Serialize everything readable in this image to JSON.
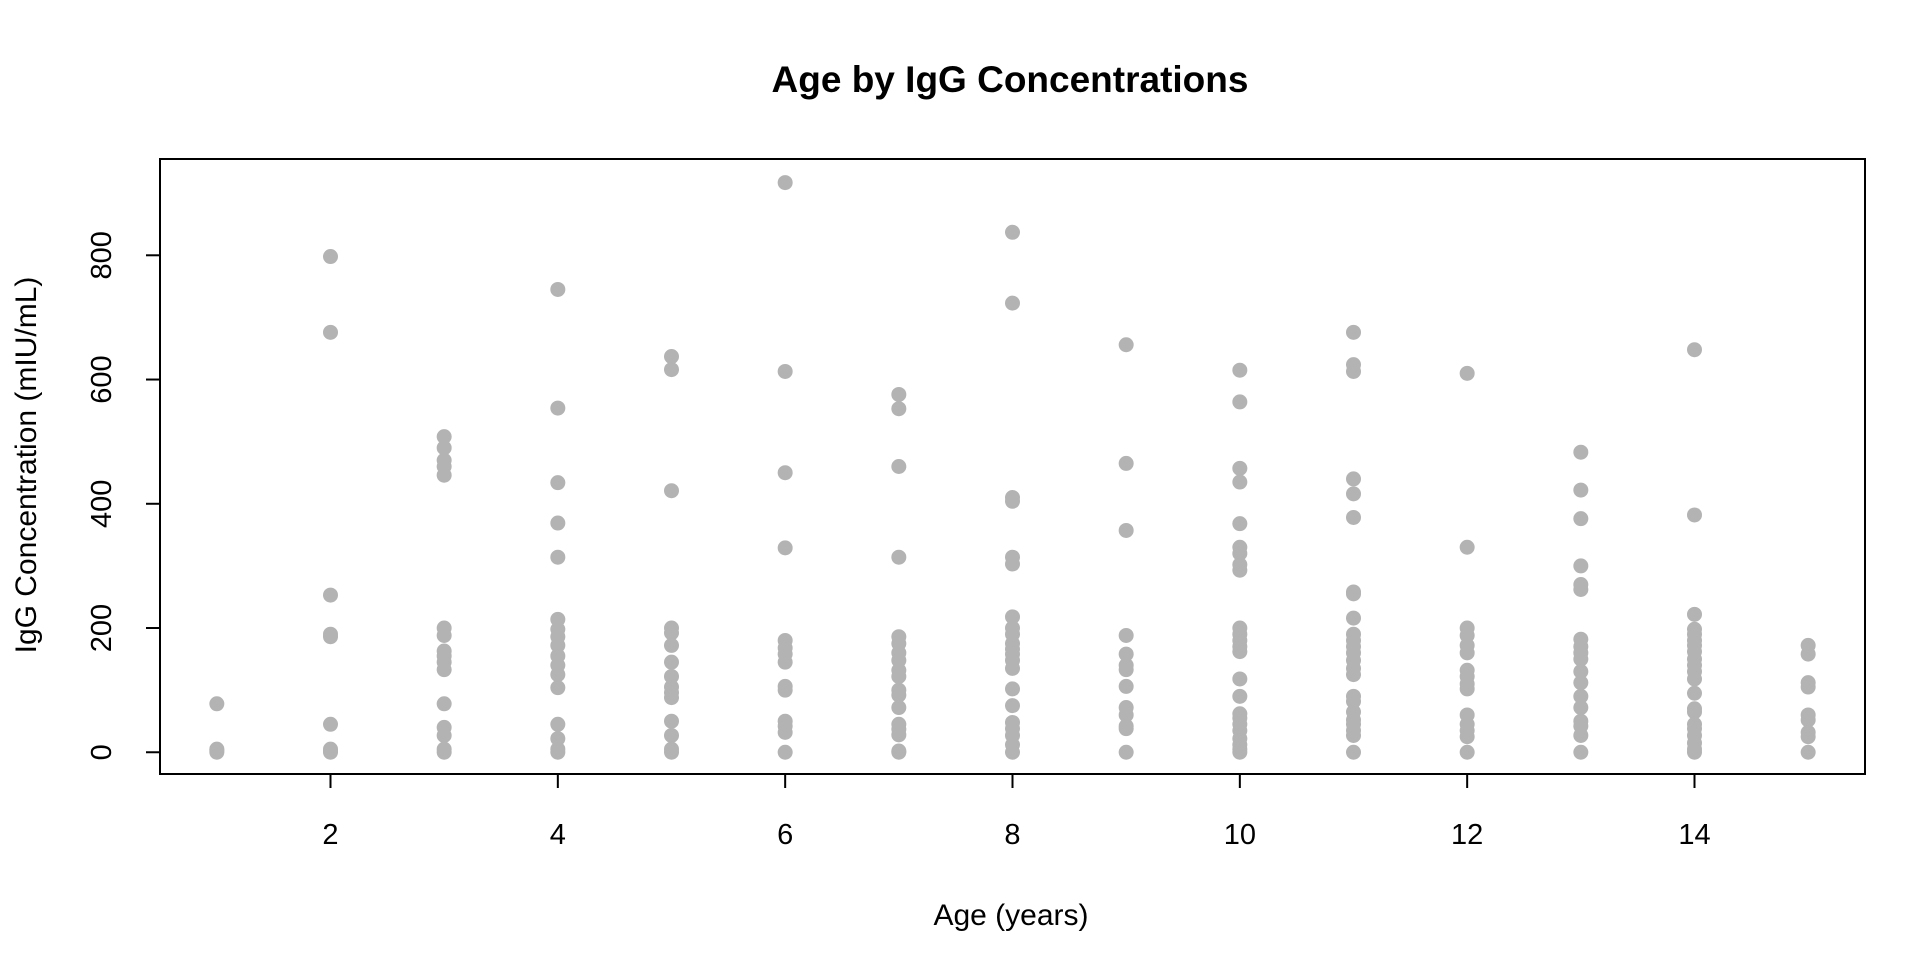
{
  "chart_data": {
    "type": "scatter",
    "title": "Age by IgG Concentrations",
    "xlabel": "Age (years)",
    "ylabel": "IgG Concentration (mIU/mL)",
    "xlim": [
      0.5,
      15.5
    ],
    "ylim": [
      -35,
      955
    ],
    "xticks": [
      2,
      4,
      6,
      8,
      10,
      12,
      14
    ],
    "xtick_labels": [
      "2",
      "4",
      "6",
      "8",
      "10",
      "12",
      "14"
    ],
    "yticks": [
      0,
      200,
      400,
      600,
      800
    ],
    "ytick_labels": [
      "0",
      "200",
      "400",
      "600",
      "800"
    ],
    "grid": false,
    "point_color": "#b3b3b3",
    "series": [
      {
        "points": [
          [
            1,
            78
          ],
          [
            1,
            5
          ],
          [
            1,
            3
          ],
          [
            1,
            0
          ],
          [
            2,
            798
          ],
          [
            2,
            676
          ],
          [
            2,
            253
          ],
          [
            2,
            190
          ],
          [
            2,
            186
          ],
          [
            2,
            45
          ],
          [
            2,
            5
          ],
          [
            2,
            2
          ],
          [
            2,
            0
          ],
          [
            3,
            508
          ],
          [
            3,
            490
          ],
          [
            3,
            470
          ],
          [
            3,
            460
          ],
          [
            3,
            446
          ],
          [
            3,
            200
          ],
          [
            3,
            188
          ],
          [
            3,
            163
          ],
          [
            3,
            155
          ],
          [
            3,
            145
          ],
          [
            3,
            133
          ],
          [
            3,
            78
          ],
          [
            3,
            40
          ],
          [
            3,
            27
          ],
          [
            3,
            5
          ],
          [
            3,
            0
          ],
          [
            4,
            745
          ],
          [
            4,
            554
          ],
          [
            4,
            434
          ],
          [
            4,
            369
          ],
          [
            4,
            314
          ],
          [
            4,
            214
          ],
          [
            4,
            198
          ],
          [
            4,
            186
          ],
          [
            4,
            172
          ],
          [
            4,
            155
          ],
          [
            4,
            140
          ],
          [
            4,
            125
          ],
          [
            4,
            104
          ],
          [
            4,
            45
          ],
          [
            4,
            22
          ],
          [
            4,
            5
          ],
          [
            4,
            0
          ],
          [
            5,
            637
          ],
          [
            5,
            616
          ],
          [
            5,
            421
          ],
          [
            5,
            200
          ],
          [
            5,
            192
          ],
          [
            5,
            172
          ],
          [
            5,
            145
          ],
          [
            5,
            122
          ],
          [
            5,
            105
          ],
          [
            5,
            96
          ],
          [
            5,
            88
          ],
          [
            5,
            50
          ],
          [
            5,
            27
          ],
          [
            5,
            5
          ],
          [
            5,
            0
          ],
          [
            6,
            917
          ],
          [
            6,
            613
          ],
          [
            6,
            450
          ],
          [
            6,
            329
          ],
          [
            6,
            180
          ],
          [
            6,
            168
          ],
          [
            6,
            158
          ],
          [
            6,
            145
          ],
          [
            6,
            106
          ],
          [
            6,
            100
          ],
          [
            6,
            50
          ],
          [
            6,
            42
          ],
          [
            6,
            32
          ],
          [
            6,
            0
          ],
          [
            7,
            576
          ],
          [
            7,
            553
          ],
          [
            7,
            460
          ],
          [
            7,
            314
          ],
          [
            7,
            186
          ],
          [
            7,
            175
          ],
          [
            7,
            160
          ],
          [
            7,
            148
          ],
          [
            7,
            132
          ],
          [
            7,
            122
          ],
          [
            7,
            100
          ],
          [
            7,
            92
          ],
          [
            7,
            72
          ],
          [
            7,
            45
          ],
          [
            7,
            37
          ],
          [
            7,
            28
          ],
          [
            7,
            2
          ],
          [
            7,
            0
          ],
          [
            8,
            837
          ],
          [
            8,
            723
          ],
          [
            8,
            410
          ],
          [
            8,
            404
          ],
          [
            8,
            314
          ],
          [
            8,
            303
          ],
          [
            8,
            218
          ],
          [
            8,
            200
          ],
          [
            8,
            190
          ],
          [
            8,
            175
          ],
          [
            8,
            166
          ],
          [
            8,
            158
          ],
          [
            8,
            148
          ],
          [
            8,
            135
          ],
          [
            8,
            102
          ],
          [
            8,
            75
          ],
          [
            8,
            48
          ],
          [
            8,
            38
          ],
          [
            8,
            27
          ],
          [
            8,
            12
          ],
          [
            8,
            0
          ],
          [
            9,
            656
          ],
          [
            9,
            465
          ],
          [
            9,
            357
          ],
          [
            9,
            188
          ],
          [
            9,
            158
          ],
          [
            9,
            140
          ],
          [
            9,
            133
          ],
          [
            9,
            106
          ],
          [
            9,
            72
          ],
          [
            9,
            60
          ],
          [
            9,
            42
          ],
          [
            9,
            38
          ],
          [
            9,
            0
          ],
          [
            10,
            615
          ],
          [
            10,
            564
          ],
          [
            10,
            457
          ],
          [
            10,
            435
          ],
          [
            10,
            368
          ],
          [
            10,
            330
          ],
          [
            10,
            320
          ],
          [
            10,
            302
          ],
          [
            10,
            293
          ],
          [
            10,
            200
          ],
          [
            10,
            190
          ],
          [
            10,
            180
          ],
          [
            10,
            170
          ],
          [
            10,
            162
          ],
          [
            10,
            118
          ],
          [
            10,
            90
          ],
          [
            10,
            62
          ],
          [
            10,
            55
          ],
          [
            10,
            45
          ],
          [
            10,
            35
          ],
          [
            10,
            22
          ],
          [
            10,
            12
          ],
          [
            10,
            5
          ],
          [
            10,
            0
          ],
          [
            11,
            676
          ],
          [
            11,
            624
          ],
          [
            11,
            613
          ],
          [
            11,
            440
          ],
          [
            11,
            416
          ],
          [
            11,
            378
          ],
          [
            11,
            258
          ],
          [
            11,
            255
          ],
          [
            11,
            216
          ],
          [
            11,
            190
          ],
          [
            11,
            180
          ],
          [
            11,
            170
          ],
          [
            11,
            160
          ],
          [
            11,
            148
          ],
          [
            11,
            135
          ],
          [
            11,
            125
          ],
          [
            11,
            90
          ],
          [
            11,
            82
          ],
          [
            11,
            65
          ],
          [
            11,
            52
          ],
          [
            11,
            45
          ],
          [
            11,
            35
          ],
          [
            11,
            27
          ],
          [
            11,
            0
          ],
          [
            12,
            610
          ],
          [
            12,
            330
          ],
          [
            12,
            200
          ],
          [
            12,
            188
          ],
          [
            12,
            172
          ],
          [
            12,
            160
          ],
          [
            12,
            132
          ],
          [
            12,
            122
          ],
          [
            12,
            110
          ],
          [
            12,
            102
          ],
          [
            12,
            60
          ],
          [
            12,
            45
          ],
          [
            12,
            35
          ],
          [
            12,
            25
          ],
          [
            12,
            0
          ],
          [
            13,
            483
          ],
          [
            13,
            422
          ],
          [
            13,
            376
          ],
          [
            13,
            300
          ],
          [
            13,
            270
          ],
          [
            13,
            262
          ],
          [
            13,
            182
          ],
          [
            13,
            170
          ],
          [
            13,
            160
          ],
          [
            13,
            150
          ],
          [
            13,
            130
          ],
          [
            13,
            112
          ],
          [
            13,
            90
          ],
          [
            13,
            72
          ],
          [
            13,
            50
          ],
          [
            13,
            42
          ],
          [
            13,
            27
          ],
          [
            13,
            0
          ],
          [
            14,
            648
          ],
          [
            14,
            382
          ],
          [
            14,
            222
          ],
          [
            14,
            198
          ],
          [
            14,
            190
          ],
          [
            14,
            180
          ],
          [
            14,
            172
          ],
          [
            14,
            162
          ],
          [
            14,
            150
          ],
          [
            14,
            140
          ],
          [
            14,
            130
          ],
          [
            14,
            118
          ],
          [
            14,
            95
          ],
          [
            14,
            70
          ],
          [
            14,
            65
          ],
          [
            14,
            45
          ],
          [
            14,
            38
          ],
          [
            14,
            27
          ],
          [
            14,
            15
          ],
          [
            14,
            5
          ],
          [
            14,
            0
          ],
          [
            15,
            172
          ],
          [
            15,
            158
          ],
          [
            15,
            112
          ],
          [
            15,
            105
          ],
          [
            15,
            60
          ],
          [
            15,
            52
          ],
          [
            15,
            32
          ],
          [
            15,
            25
          ],
          [
            15,
            0
          ]
        ]
      }
    ]
  }
}
